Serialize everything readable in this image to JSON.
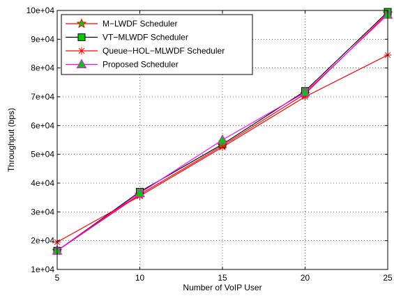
{
  "chart_data": {
    "type": "line",
    "title": "",
    "xlabel": "Number of VoIP User",
    "ylabel": "Throughput (bps)",
    "x": [
      5,
      10,
      15,
      20,
      25
    ],
    "xlim": [
      5,
      25
    ],
    "ylim": [
      10000,
      100000
    ],
    "xticks": [
      5,
      10,
      15,
      20,
      25
    ],
    "yticks": [
      10000,
      20000,
      30000,
      40000,
      50000,
      60000,
      70000,
      80000,
      90000,
      100000
    ],
    "ytick_labels": [
      "1e+04",
      "2e+04",
      "3e+04",
      "4e+04",
      "5e+04",
      "6e+04",
      "7e+04",
      "8e+04",
      "9e+04",
      "10e+04"
    ],
    "grid": true,
    "legend_position": "top-left",
    "series": [
      {
        "name": "M−LWDF Scheduler",
        "color": "#ff0000",
        "marker": "star",
        "marker_face": "#00cc00",
        "values": [
          16500,
          36000,
          53000,
          71000,
          99000
        ]
      },
      {
        "name": "VT−MLWDF Scheduler",
        "color": "#000000",
        "marker": "square",
        "marker_face": "#00cc00",
        "values": [
          16500,
          37000,
          53500,
          72000,
          99500
        ]
      },
      {
        "name": "Queue−HOL−MLWDF Scheduler",
        "color": "#ff0000",
        "marker": "asterisk",
        "marker_face": "#ff0000",
        "values": [
          19500,
          35500,
          52500,
          70000,
          84500
        ]
      },
      {
        "name": "Proposed Scheduler",
        "color": "#ff00ff",
        "marker": "triangle",
        "marker_face": "#00cc00",
        "values": [
          16500,
          36500,
          55000,
          71500,
          98500
        ]
      }
    ]
  }
}
